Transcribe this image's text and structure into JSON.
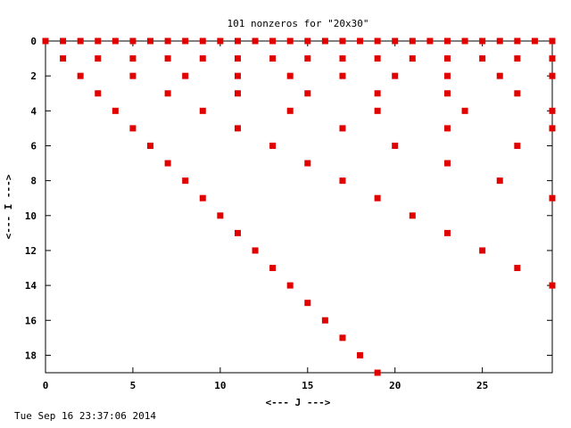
{
  "chart_data": {
    "type": "scatter",
    "title": "101 nonzeros for \"20x30\"",
    "xlabel": "<--- J --->",
    "ylabel": "<--- I --->",
    "xlim": [
      0,
      29
    ],
    "ylim": [
      19,
      0
    ],
    "x_ticks": [
      0,
      5,
      10,
      15,
      20,
      25
    ],
    "x_tick_labels": [
      "0",
      "5",
      "10",
      "15",
      "20",
      "25"
    ],
    "y_ticks": [
      0,
      2,
      4,
      6,
      8,
      10,
      12,
      14,
      16,
      18
    ],
    "y_tick_labels": [
      "0",
      "2",
      "4",
      "6",
      "8",
      "10",
      "12",
      "14",
      "16",
      "18"
    ],
    "grid": false,
    "legend": "none",
    "series_color": "#e00000",
    "points": [
      [
        0,
        0
      ],
      [
        1,
        0
      ],
      [
        2,
        0
      ],
      [
        3,
        0
      ],
      [
        4,
        0
      ],
      [
        5,
        0
      ],
      [
        6,
        0
      ],
      [
        7,
        0
      ],
      [
        8,
        0
      ],
      [
        9,
        0
      ],
      [
        10,
        0
      ],
      [
        11,
        0
      ],
      [
        12,
        0
      ],
      [
        13,
        0
      ],
      [
        14,
        0
      ],
      [
        15,
        0
      ],
      [
        16,
        0
      ],
      [
        17,
        0
      ],
      [
        18,
        0
      ],
      [
        19,
        0
      ],
      [
        20,
        0
      ],
      [
        21,
        0
      ],
      [
        22,
        0
      ],
      [
        23,
        0
      ],
      [
        24,
        0
      ],
      [
        25,
        0
      ],
      [
        26,
        0
      ],
      [
        27,
        0
      ],
      [
        28,
        0
      ],
      [
        29,
        0
      ],
      [
        1,
        1
      ],
      [
        3,
        1
      ],
      [
        5,
        1
      ],
      [
        7,
        1
      ],
      [
        9,
        1
      ],
      [
        11,
        1
      ],
      [
        13,
        1
      ],
      [
        15,
        1
      ],
      [
        17,
        1
      ],
      [
        19,
        1
      ],
      [
        21,
        1
      ],
      [
        23,
        1
      ],
      [
        25,
        1
      ],
      [
        27,
        1
      ],
      [
        29,
        1
      ],
      [
        2,
        2
      ],
      [
        5,
        2
      ],
      [
        8,
        2
      ],
      [
        11,
        2
      ],
      [
        14,
        2
      ],
      [
        17,
        2
      ],
      [
        20,
        2
      ],
      [
        23,
        2
      ],
      [
        26,
        2
      ],
      [
        29,
        2
      ],
      [
        3,
        3
      ],
      [
        7,
        3
      ],
      [
        11,
        3
      ],
      [
        15,
        3
      ],
      [
        19,
        3
      ],
      [
        23,
        3
      ],
      [
        27,
        3
      ],
      [
        4,
        4
      ],
      [
        9,
        4
      ],
      [
        14,
        4
      ],
      [
        19,
        4
      ],
      [
        24,
        4
      ],
      [
        29,
        4
      ],
      [
        5,
        5
      ],
      [
        11,
        5
      ],
      [
        17,
        5
      ],
      [
        23,
        5
      ],
      [
        29,
        5
      ],
      [
        6,
        6
      ],
      [
        13,
        6
      ],
      [
        20,
        6
      ],
      [
        27,
        6
      ],
      [
        7,
        7
      ],
      [
        15,
        7
      ],
      [
        23,
        7
      ],
      [
        8,
        8
      ],
      [
        17,
        8
      ],
      [
        26,
        8
      ],
      [
        9,
        9
      ],
      [
        19,
        9
      ],
      [
        29,
        9
      ],
      [
        10,
        10
      ],
      [
        21,
        10
      ],
      [
        11,
        11
      ],
      [
        23,
        11
      ],
      [
        12,
        12
      ],
      [
        25,
        12
      ],
      [
        13,
        13
      ],
      [
        27,
        13
      ],
      [
        14,
        14
      ],
      [
        29,
        14
      ],
      [
        15,
        15
      ],
      [
        16,
        16
      ],
      [
        17,
        17
      ],
      [
        18,
        18
      ],
      [
        19,
        19
      ]
    ]
  },
  "footer": {
    "timestamp": "Tue Sep 16 23:37:06 2014"
  }
}
